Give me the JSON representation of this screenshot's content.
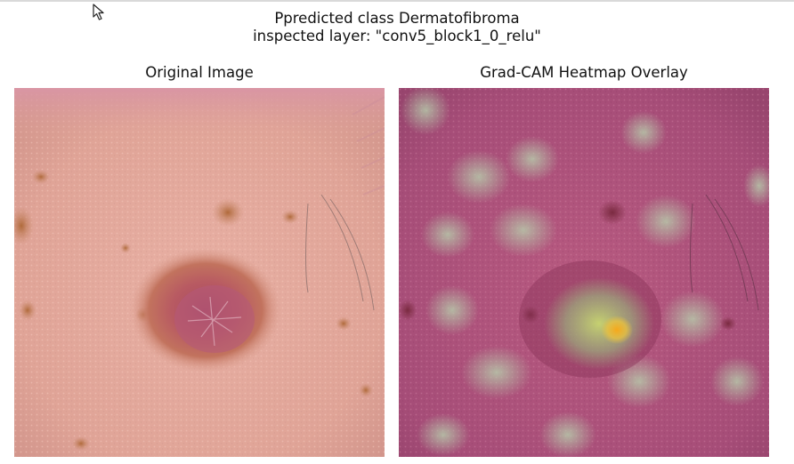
{
  "figure": {
    "suptitle_line1": "Ppredicted class Dermatofibroma",
    "suptitle_line2": "inspected layer: \"conv5_block1_0_relu\""
  },
  "panels": [
    {
      "title": "Original Image"
    },
    {
      "title": "Grad-CAM Heatmap Overlay"
    }
  ],
  "icons": {
    "cursor": "mouse-pointer-icon"
  },
  "colors": {
    "skin_base": "#e3a59a",
    "lesion": "#a04a55",
    "overlay_tint": "#a0406e",
    "heat_hot": "#f0a020",
    "heat_warm": "#a8c878"
  }
}
